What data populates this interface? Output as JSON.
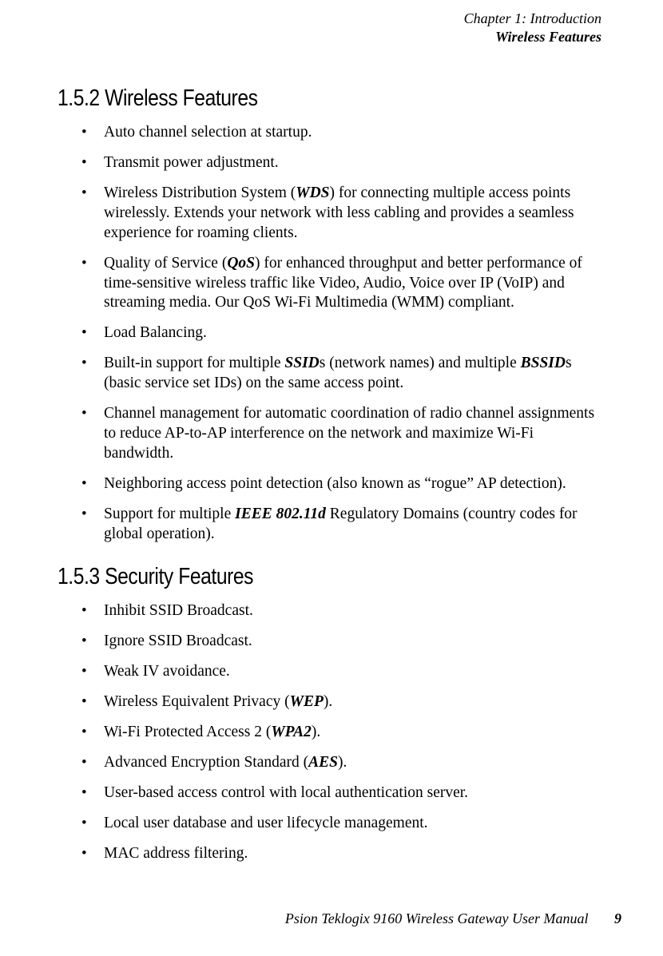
{
  "colors": {
    "background": "#ffffff",
    "text": "#000000"
  },
  "typography": {
    "body_font": "Times New Roman",
    "heading_font": "Arial Narrow",
    "body_fontsize_pt": 15,
    "heading_fontsize_pt": 22
  },
  "header": {
    "chapter": "Chapter 1:  Introduction",
    "section": "Wireless Features"
  },
  "sections": [
    {
      "number": "1.5.2",
      "title": "Wireless Features",
      "items": [
        [
          {
            "t": "Auto channel selection at startup."
          }
        ],
        [
          {
            "t": "Transmit power adjustment."
          }
        ],
        [
          {
            "t": "Wireless Distribution System ("
          },
          {
            "t": "WDS",
            "s": "bi"
          },
          {
            "t": ") for connecting multiple access points wirelessly. Extends your network with less cabling and provides a seamless experience for roaming clients."
          }
        ],
        [
          {
            "t": "Quality of Service ("
          },
          {
            "t": "QoS",
            "s": "bi"
          },
          {
            "t": ") for enhanced throughput and better performance of time-sensitive wireless traffic like Video, Audio, Voice over IP (VoIP) and streaming media. Our QoS Wi-Fi Multimedia (WMM) compliant."
          }
        ],
        [
          {
            "t": "Load Balancing."
          }
        ],
        [
          {
            "t": "Built-in support for multiple "
          },
          {
            "t": "SSID",
            "s": "bi"
          },
          {
            "t": "s (network names) and multiple "
          },
          {
            "t": "BSSID",
            "s": "bi"
          },
          {
            "t": "s (basic service set IDs) on the same access point."
          }
        ],
        [
          {
            "t": "Channel management for automatic coordination of radio channel assignments to reduce AP-to-AP interference on the network and maximize Wi-Fi bandwidth."
          }
        ],
        [
          {
            "t": "Neighboring access point detection (also known as “rogue” AP detection)."
          }
        ],
        [
          {
            "t": "Support for multiple "
          },
          {
            "t": "IEEE 802.11d",
            "s": "bi"
          },
          {
            "t": " Regulatory Domains (country codes for global operation)."
          }
        ]
      ]
    },
    {
      "number": "1.5.3",
      "title": "Security Features",
      "items": [
        [
          {
            "t": "Inhibit SSID Broadcast."
          }
        ],
        [
          {
            "t": "Ignore SSID Broadcast."
          }
        ],
        [
          {
            "t": "Weak IV avoidance."
          }
        ],
        [
          {
            "t": "Wireless Equivalent Privacy ("
          },
          {
            "t": "WEP",
            "s": "bi"
          },
          {
            "t": ")."
          }
        ],
        [
          {
            "t": "Wi-Fi Protected Access 2 ("
          },
          {
            "t": "WPA2",
            "s": "bi"
          },
          {
            "t": ")."
          }
        ],
        [
          {
            "t": "Advanced Encryption Standard ("
          },
          {
            "t": "AES",
            "s": "bi"
          },
          {
            "t": ")."
          }
        ],
        [
          {
            "t": "User-based access control with local authentication server."
          }
        ],
        [
          {
            "t": "Local user database and user lifecycle management."
          }
        ],
        [
          {
            "t": "MAC address filtering."
          }
        ]
      ]
    }
  ],
  "footer": {
    "title": "Psion Teklogix 9160 Wireless Gateway User Manual",
    "page": "9"
  }
}
